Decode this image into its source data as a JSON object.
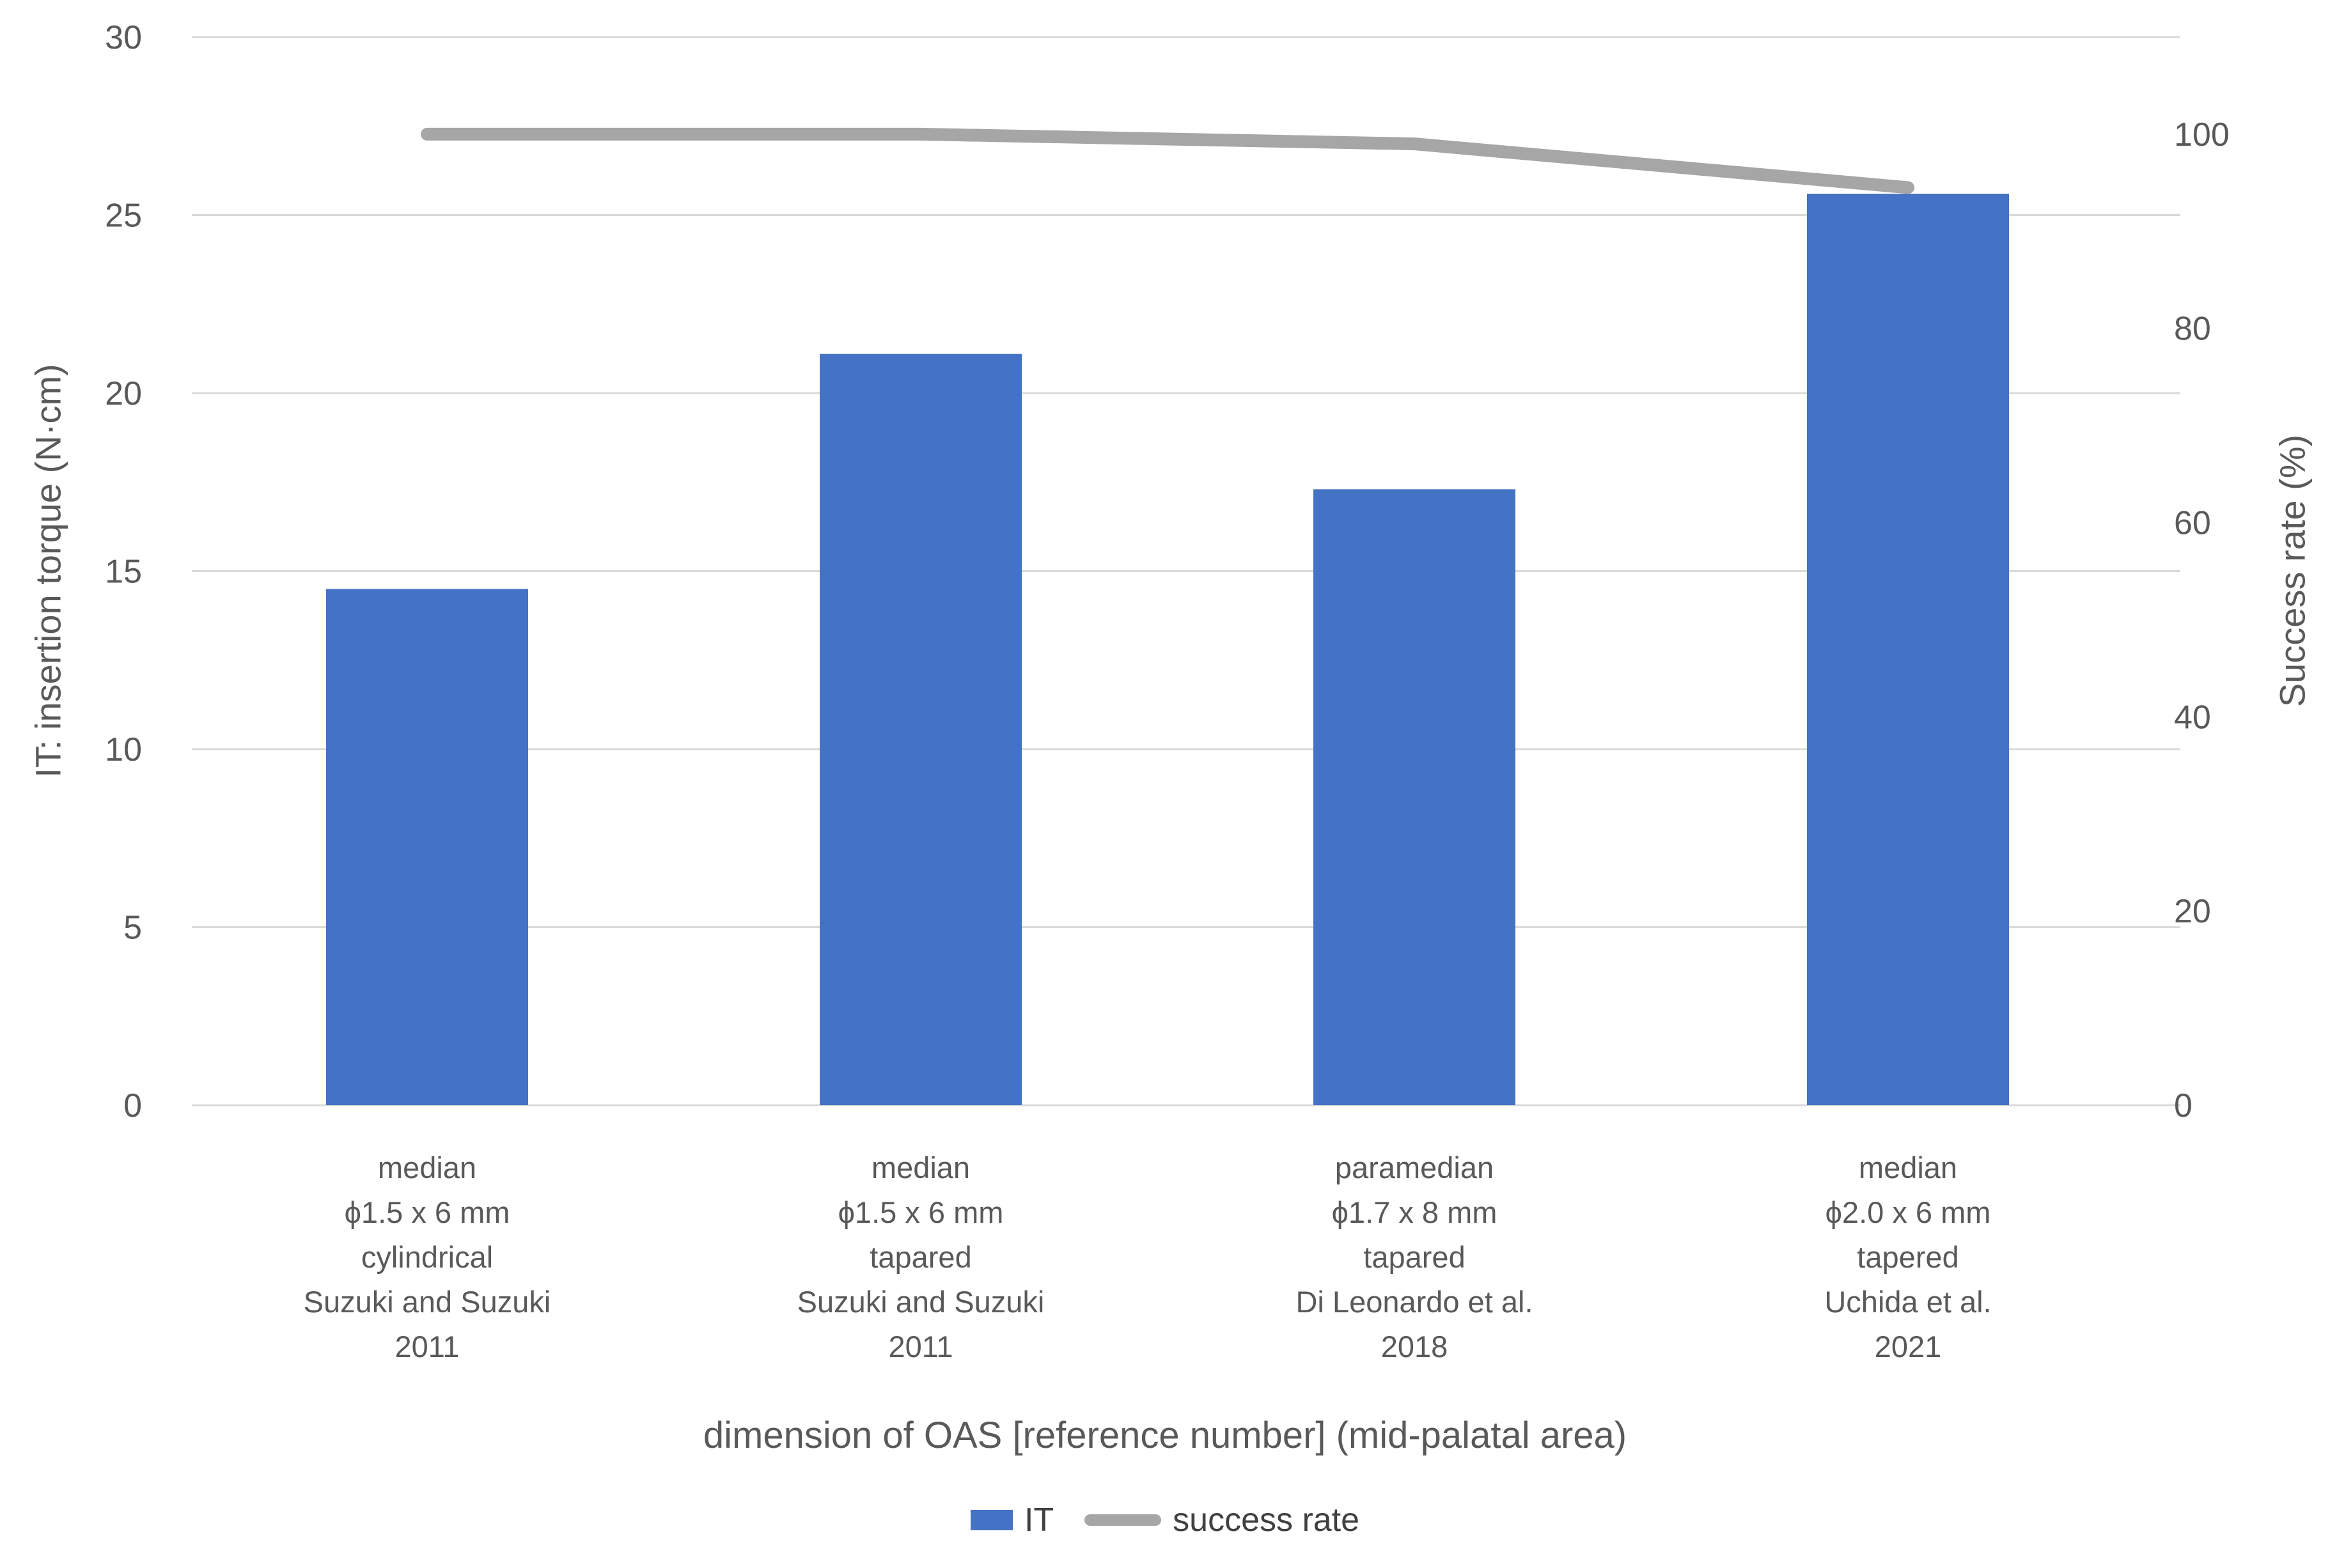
{
  "chart_data": {
    "type": "combo-bar-line",
    "categories": [
      [
        "median",
        "ϕ1.5 x 6 mm",
        "cylindrical",
        "Suzuki and Suzuki",
        "2011"
      ],
      [
        "median",
        "ϕ1.5 x 6 mm",
        "tapared",
        "Suzuki and Suzuki",
        "2011"
      ],
      [
        "paramedian",
        "ϕ1.7 x 8 mm",
        "tapared",
        "Di Leonardo et al.",
        "2018"
      ],
      [
        "median",
        "ϕ2.0 x 6 mm",
        "tapered",
        "Uchida et al.",
        "2021"
      ]
    ],
    "series": [
      {
        "name": "IT",
        "type": "bar",
        "axis": "left",
        "color": "#4472C4",
        "values": [
          14.5,
          21.1,
          17.3,
          25.6
        ]
      },
      {
        "name": "success rate",
        "type": "line",
        "axis": "right",
        "color": "#A6A6A6",
        "values": [
          100,
          100,
          99,
          94.5
        ]
      }
    ],
    "left_axis": {
      "title": "IT: insertion torque (N·cm)",
      "min": 0,
      "max": 30,
      "ticks": [
        0,
        5,
        10,
        15,
        20,
        25,
        30
      ]
    },
    "right_axis": {
      "title": "Success rate (%)",
      "min": 0,
      "max": 110,
      "ticks": [
        0,
        20,
        40,
        60,
        80,
        100
      ]
    },
    "xlabel": "dimension of OAS [reference number] (mid-palatal area)",
    "grid": true,
    "legend_position": "bottom",
    "colors": {
      "grid": "#D9D9D9",
      "text": "#595959",
      "background": "#FFFFFF"
    }
  }
}
